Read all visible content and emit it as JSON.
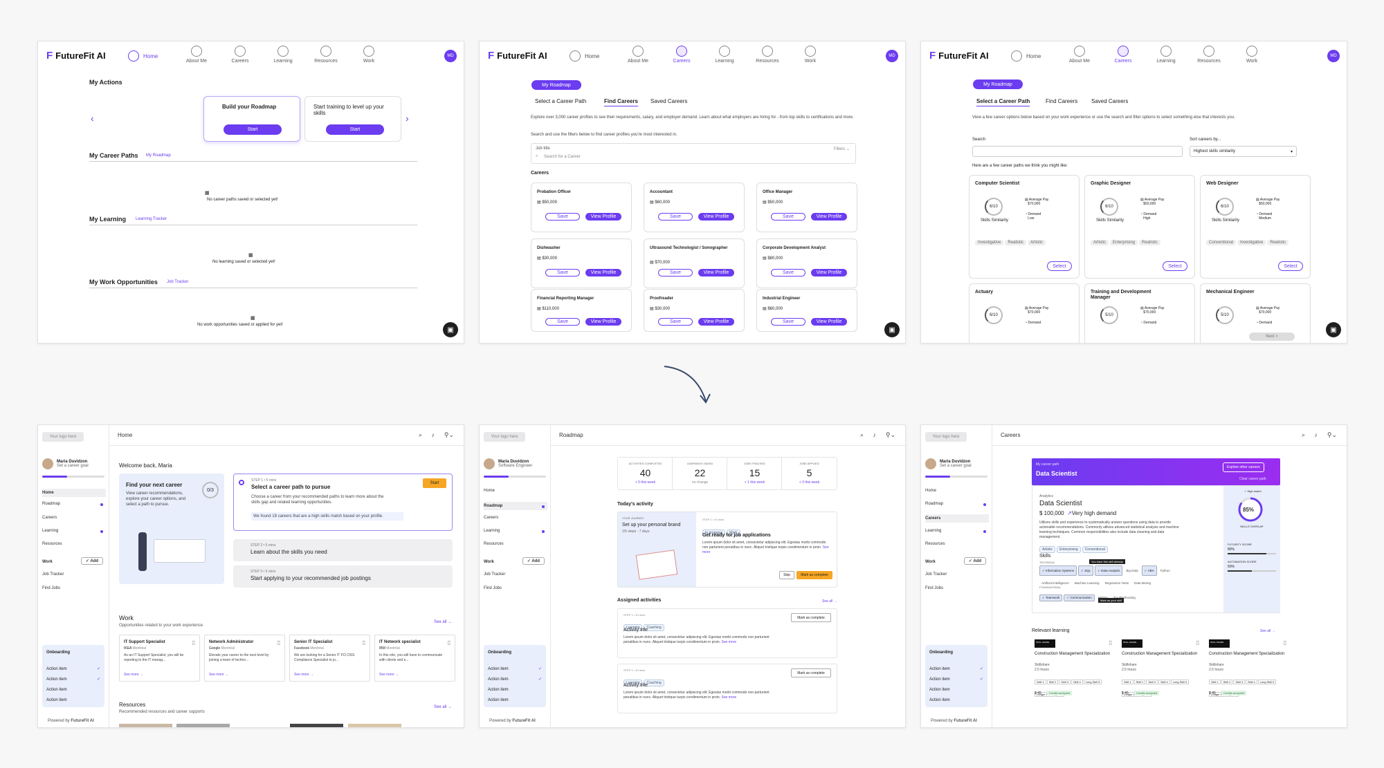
{
  "brand": {
    "name": "FutureFit AI",
    "mark": "F"
  },
  "nav": {
    "home": "Home",
    "items": [
      "About Me",
      "Careers",
      "Learning",
      "Resources",
      "Work"
    ],
    "avatar": "MD"
  },
  "s1": {
    "my_actions": "My Actions",
    "cards": [
      {
        "title": "Build your Roadmap",
        "btn": "Start"
      },
      {
        "title": "Start training to level up your skills",
        "btn": "Start"
      }
    ],
    "career_paths": "My Career Paths",
    "career_paths_link": "My Roadmap",
    "career_empty": "No career paths saved or selected yet!",
    "learning": "My Learning",
    "learning_link": "Learning Tracker",
    "learning_empty": "No learning saved or selected yet!",
    "work": "My Work Opportunities",
    "work_link": "Job Tracker",
    "work_empty": "No work opportunities saved or applied for yet!"
  },
  "s2": {
    "roadmap_btn": "My Roadmap",
    "tabs": [
      "Select a Career Path",
      "Find Careers",
      "Saved Careers"
    ],
    "intro1": "Explore over 3,000 career profiles to see their requirements, salary, and employer demand. Learn about what employers are hiring for - from top skills to certifications and more.",
    "intro2": "Search and use the filters below to find career profiles you're most interested in.",
    "job_label": "Job title",
    "job_placeholder": "Search for a Career",
    "filters": "Filters",
    "careers_label": "Careers",
    "save": "Save",
    "view": "View Profile",
    "careers": [
      {
        "t": "Probation Officer",
        "p": "$50,000"
      },
      {
        "t": "Accountant",
        "p": "$60,000"
      },
      {
        "t": "Office Manager",
        "p": "$50,000"
      },
      {
        "t": "Dishwasher",
        "p": "$30,000"
      },
      {
        "t": "Ultrasound Technologist / Sonographer",
        "p": "$70,000"
      },
      {
        "t": "Corporate Development Analyst",
        "p": "$80,000"
      },
      {
        "t": "Financial Reporting Manager",
        "p": "$110,000"
      },
      {
        "t": "Proofreader",
        "p": "$30,000"
      },
      {
        "t": "Industrial Engineer",
        "p": "$60,000"
      }
    ]
  },
  "s3": {
    "intro": "View a few career options below based on your work experience or use the search and filter options to select something else that interests you.",
    "search_label": "Search",
    "sort_label": "Sort careers by...",
    "sort_value": "Highest skills similarity",
    "suggest": "Here are a few career paths we think you might like:",
    "sim_label": "Skills Similarity",
    "pay_label": "Average Pay",
    "demand_label": "Demand",
    "select": "Select",
    "next": "Next >",
    "cards": [
      {
        "t": "Computer Scientist",
        "s": "6/10",
        "p": "$70,000",
        "d": "Low",
        "tags": [
          "Investigative",
          "Realistic",
          "Artistic"
        ]
      },
      {
        "t": "Graphic Designer",
        "s": "6/10",
        "p": "$50,000",
        "d": "High",
        "tags": [
          "Artistic",
          "Enterprising",
          "Realistic"
        ]
      },
      {
        "t": "Web Designer",
        "s": "6/10",
        "p": "$50,000",
        "d": "Medium",
        "tags": [
          "Conventional",
          "Investigative",
          "Realistic"
        ]
      },
      {
        "t": "Actuary",
        "s": "6/10",
        "p": "$70,000",
        "d": "",
        "tags": []
      },
      {
        "t": "Training and Development Manager",
        "s": "5/10",
        "p": "$70,000",
        "d": "",
        "tags": []
      },
      {
        "t": "Mechanical Engineer",
        "s": "5/10",
        "p": "$70,000",
        "d": "",
        "tags": []
      }
    ]
  },
  "side": {
    "logo": "Your logo here",
    "user": "Maria Duvidzon",
    "goal": "Set a career goal",
    "role": "Software Engineer",
    "items": [
      "Home",
      "Roadmap",
      "Careers",
      "Learning",
      "Resources"
    ],
    "work": "Work",
    "add": "Add",
    "work_items": [
      "Job Tracker",
      "Find Jobs"
    ],
    "onboarding": "Onboarding",
    "action": "Action item",
    "powered": "Powered by"
  },
  "b1": {
    "title": "Home",
    "welcome": "Welcome back, Maria",
    "find_title": "Find your next career",
    "find_desc": "View career recommendations, explore your career options, and select a path to pursue.",
    "count": "0/3",
    "step1_tag": "STEP 1 • 5 mins",
    "step1": "Select a career path to pursue",
    "step1_desc": "Choose a career from your recommended paths to learn more about the skills gap and related learning opportunities.",
    "start": "Start",
    "found": "We found 18 careers that are a high skills match based on your profile.",
    "step2_tag": "STEP 2 • 5 mins",
    "step2": "Learn about the skills you need",
    "step3_tag": "STEP 3 • 5 mins",
    "step3": "Start applying to your recommended job postings",
    "work": "Work",
    "work_sub": "Opportunities related to your work experience",
    "see_all": "See all",
    "jobs": [
      {
        "t": "IT Support Specialist",
        "c": "IKEA",
        "l": "Montréal",
        "d": "As an IT Support Specialist, you will be reporting to the IT manag..."
      },
      {
        "t": "Network Administrator",
        "c": "Google",
        "l": "Montréal",
        "d": "Elevate your career to the next level by joining a team of techno..."
      },
      {
        "t": "Senior IT Specialist",
        "c": "Facebook",
        "l": "Montréal",
        "d": "We are looking for a Senior IT FCI DSS Compliance Specialist to jo..."
      },
      {
        "t": "IT Network specialist",
        "c": "IBM",
        "l": "Montréal",
        "d": "In this role, you will have to communicate with clients and e..."
      }
    ],
    "see_more": "See more",
    "resources": "Resources",
    "res_sub": "Recommended resources and career supports"
  },
  "b2": {
    "title": "Roadmap",
    "stats": [
      {
        "l": "ACTIVITIES COMPLETED",
        "v": "40",
        "s": "+ 5 this week"
      },
      {
        "l": "LEARNINGS SAVED",
        "v": "22",
        "s": "no change"
      },
      {
        "l": "JOBS TRACKED",
        "v": "15",
        "s": "+ 1 this week"
      },
      {
        "l": "JOBS APPLIED",
        "v": "5",
        "s": "+ 3 this week"
      }
    ],
    "today": "Today's activity",
    "journey": "YOUR JOURNEY",
    "journey_t": "Set up your personal brand",
    "journey_s": "1/5 steps · 7 days",
    "act_tag": "STEP 1 • 10 mins",
    "in_progress": "In progress",
    "work_chip": "Work",
    "act_t": "Get ready for job applications",
    "lorem": "Lorem ipsum dolor sit amet, consectetur adipiscing elit. Egestas morbi commodo non parturient penatibus in nunc. Aliquet tristique turpis condimentum in proin.",
    "see_more": "See more",
    "skip": "Skip",
    "mark": "Mark as complete",
    "assigned": "Assigned activities",
    "see_all": "See all",
    "a_tag": "STEP 1 • 10 mins",
    "learning": "Learning",
    "coaching": "Coaching",
    "a_title": "Activity title"
  },
  "b3": {
    "title": "Careers",
    "path_lbl": "My career path",
    "path": "Data Scientist",
    "explore": "Explore other careers",
    "clear": "Clear career path",
    "field": "Analytics",
    "name": "Data Scientist",
    "pay": "$ 100,000",
    "demand": "Very high demand",
    "desc": "Utilizes skills and experience to systematically answer questions using data to provide actionable recommendations. Commonly utilizes advanced statistical analysis and machine learning techniques. Common responsibilities also include data cleaning and data management.",
    "tags": [
      "Artistic",
      "Enterprising",
      "Conventional"
    ],
    "match": "High match",
    "pct": "85%",
    "overlap": "SKILLS OVERLAP",
    "fut": "FUTURITY SCORE",
    "fut_v": "80%",
    "auto": "AUTOMATION SCORE",
    "auto_v": "50%",
    "skills": "Skills",
    "technical": "TECHNICAL",
    "tech": [
      "Information Systems",
      "SQL",
      "Data Analysis",
      "Big Data",
      "VBA",
      "Python",
      "Artificial Intelligence",
      "Machine Learning",
      "Regression Tests",
      "Data Mining"
    ],
    "tooltip": "You have this skill already",
    "foundational": "FOUNDATIONAL",
    "found": [
      "Teamwork",
      "Communication",
      "Writing",
      "Troubleshooting"
    ],
    "mark_skill": "Mark as your skill",
    "relevant": "Relevant learning",
    "see_all": "See all",
    "courses": [
      {
        "t": "Construction Management Specialization",
        "p": "Skillshare",
        "h": "2.5 hours",
        "price": "$ 45",
        "cr": "Credits accepted"
      },
      {
        "t": "Construction Management Specialization",
        "p": "Skillshare",
        "h": "2.5 hours",
        "price": "$ 45",
        "cr": "Credits accepted"
      },
      {
        "t": "Construction Management Specialization",
        "p": "Skillshare",
        "h": "2.5 hours",
        "price": "$ 45",
        "cr": "Credits accepted"
      }
    ],
    "skill_tags": [
      "Skill 1",
      "Skill 2",
      "Skill 3",
      "Skill 4",
      "Long Skill 5",
      "Longer Skill 6",
      "+ 3"
    ],
    "logo": "SKILL SHARE"
  },
  "colors": {
    "accent": "#6b3cf0",
    "orange": "#f6a623"
  }
}
